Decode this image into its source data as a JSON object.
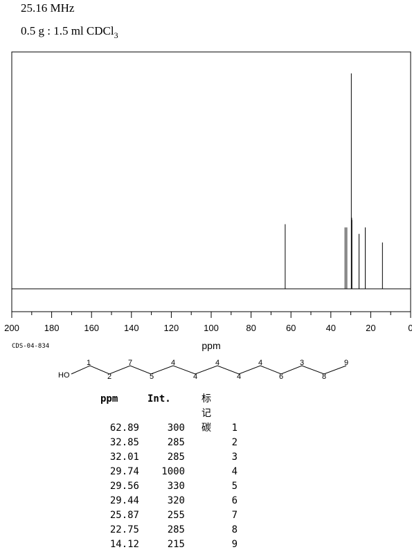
{
  "header": {
    "frequency": "25.16 MHz",
    "sample_main": "0.5 g : 1.5 ml CDCl",
    "sample_sub": "3"
  },
  "code": "CDS-04-834",
  "molecule": {
    "ho_label": "HO",
    "labels": [
      "1",
      "2",
      "7",
      "5",
      "4",
      "4",
      "4",
      "4",
      "4",
      "6",
      "3",
      "8",
      "9"
    ]
  },
  "chart_data": {
    "type": "line",
    "subtype": "nmr-stick-spectrum",
    "xlabel": "ppm",
    "xlim": [
      200,
      0
    ],
    "x_ticks": [
      200,
      180,
      160,
      140,
      120,
      100,
      80,
      60,
      40,
      20,
      0
    ],
    "y_scale_max": 1000,
    "peaks": [
      {
        "ppm": 62.89,
        "intensity": 300
      },
      {
        "ppm": 32.85,
        "intensity": 285
      },
      {
        "ppm": 32.01,
        "intensity": 285
      },
      {
        "ppm": 29.74,
        "intensity": 1000
      },
      {
        "ppm": 29.56,
        "intensity": 330
      },
      {
        "ppm": 29.44,
        "intensity": 320
      },
      {
        "ppm": 25.87,
        "intensity": 255
      },
      {
        "ppm": 22.75,
        "intensity": 285
      },
      {
        "ppm": 14.12,
        "intensity": 215
      }
    ]
  },
  "table": {
    "headers": {
      "ppm": "ppm",
      "int": "Int.",
      "carbon": "标记碳"
    },
    "rows": [
      {
        "ppm": "62.89",
        "int": "300",
        "carbon": "1"
      },
      {
        "ppm": "32.85",
        "int": "285",
        "carbon": "2"
      },
      {
        "ppm": "32.01",
        "int": "285",
        "carbon": "3"
      },
      {
        "ppm": "29.74",
        "int": "1000",
        "carbon": "4"
      },
      {
        "ppm": "29.56",
        "int": "330",
        "carbon": "5"
      },
      {
        "ppm": "29.44",
        "int": "320",
        "carbon": "6"
      },
      {
        "ppm": "25.87",
        "int": "255",
        "carbon": "7"
      },
      {
        "ppm": "22.75",
        "int": "285",
        "carbon": "8"
      },
      {
        "ppm": "14.12",
        "int": "215",
        "carbon": "9"
      }
    ]
  }
}
